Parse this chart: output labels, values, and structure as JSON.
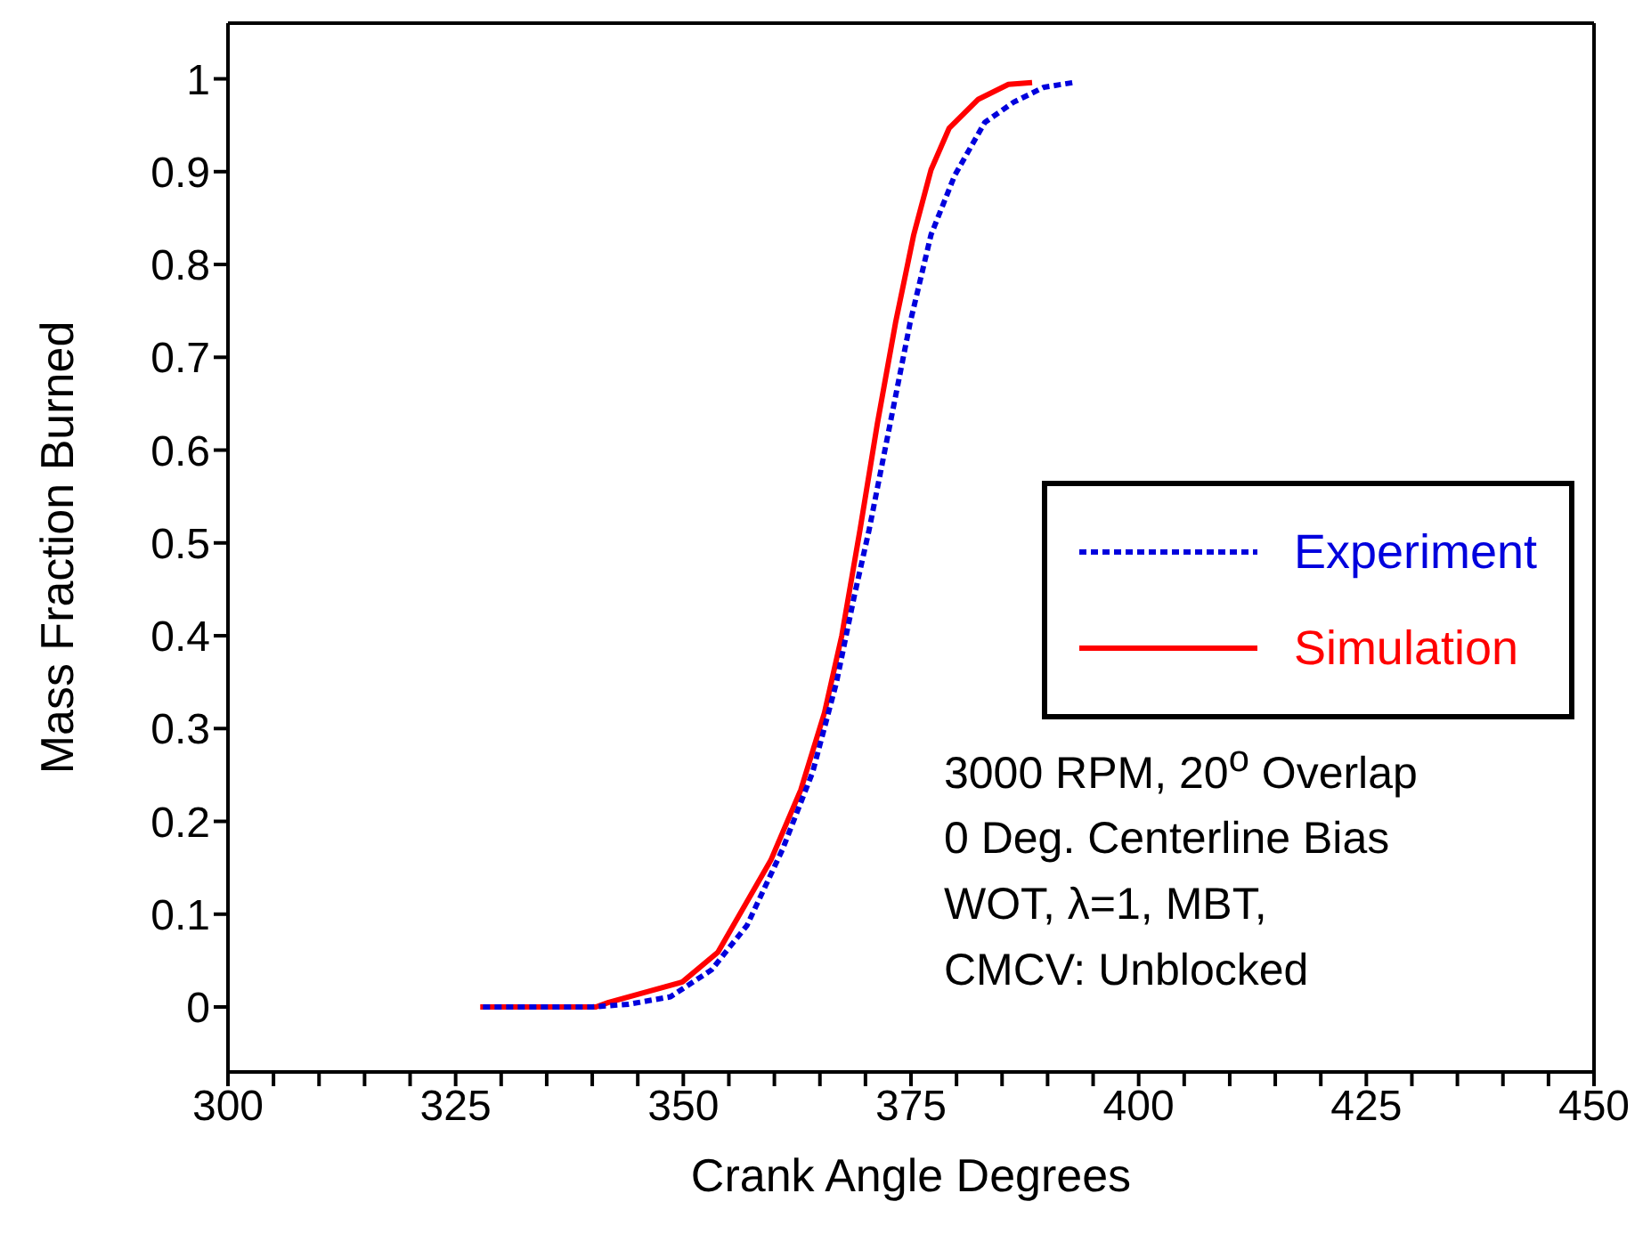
{
  "chart_data": {
    "type": "line",
    "xlabel": "Crank Angle Degrees",
    "ylabel": "Mass Fraction Burned",
    "xlim": [
      300,
      450
    ],
    "ylim": [
      -0.07,
      1.06
    ],
    "xticks": [
      300,
      {
        "value": 305,
        "label": null
      },
      {
        "value": 310,
        "label": null
      },
      {
        "value": 315,
        "label": null
      },
      {
        "value": 320,
        "label": null
      },
      325,
      {
        "value": 330,
        "label": null
      },
      {
        "value": 335,
        "label": null
      },
      {
        "value": 340,
        "label": null
      },
      {
        "value": 345,
        "label": null
      },
      350,
      {
        "value": 355,
        "label": null
      },
      {
        "value": 360,
        "label": null
      },
      {
        "value": 365,
        "label": null
      },
      {
        "value": 370,
        "label": null
      },
      375,
      {
        "value": 380,
        "label": null
      },
      {
        "value": 385,
        "label": null
      },
      {
        "value": 390,
        "label": null
      },
      {
        "value": 395,
        "label": null
      },
      400,
      {
        "value": 405,
        "label": null
      },
      {
        "value": 410,
        "label": null
      },
      {
        "value": 415,
        "label": null
      },
      {
        "value": 420,
        "label": null
      },
      425,
      {
        "value": 430,
        "label": null
      },
      {
        "value": 435,
        "label": null
      },
      {
        "value": 440,
        "label": null
      },
      {
        "value": 445,
        "label": null
      },
      450
    ],
    "yticks": [
      0,
      0.1,
      0.2,
      0.3,
      0.4,
      0.5,
      0.6,
      0.7,
      0.8,
      0.9,
      1
    ],
    "grid": false,
    "legend": "right",
    "marker": "none",
    "series": [
      {
        "name": "Experiment",
        "color": "#0000dd",
        "line_style": "dashed",
        "x": [
          328,
          340,
          344,
          348.6,
          353.1,
          357,
          360.9,
          364.2,
          366.8,
          368.8,
          370.4,
          372.7,
          374.9,
          377.2,
          379.8,
          383.1,
          386.3,
          389.6,
          392.8
        ],
        "values": [
          0,
          0,
          0.003,
          0.011,
          0.04,
          0.088,
          0.17,
          0.253,
          0.349,
          0.444,
          0.514,
          0.628,
          0.737,
          0.832,
          0.896,
          0.953,
          0.975,
          0.991,
          0.996
        ]
      },
      {
        "name": "Simulation",
        "color": "#ff0000",
        "line_style": "solid",
        "x": [
          327.7,
          340.4,
          341.8,
          349.9,
          353.8,
          359.6,
          362.9,
          365.5,
          367.4,
          369.4,
          371.3,
          373.3,
          375.3,
          377.2,
          379.2,
          382.4,
          385.7,
          388.3
        ],
        "values": [
          0,
          0,
          0.005,
          0.027,
          0.059,
          0.158,
          0.234,
          0.317,
          0.4,
          0.514,
          0.628,
          0.737,
          0.832,
          0.902,
          0.947,
          0.978,
          0.994,
          0.996
        ]
      }
    ],
    "annotations": [
      "3000 RPM, 20$^{o}$ Overlap",
      "0 Deg. Centerline Bias",
      "WOT, λ=1, MBT,",
      "CMCV: Unblocked"
    ]
  }
}
